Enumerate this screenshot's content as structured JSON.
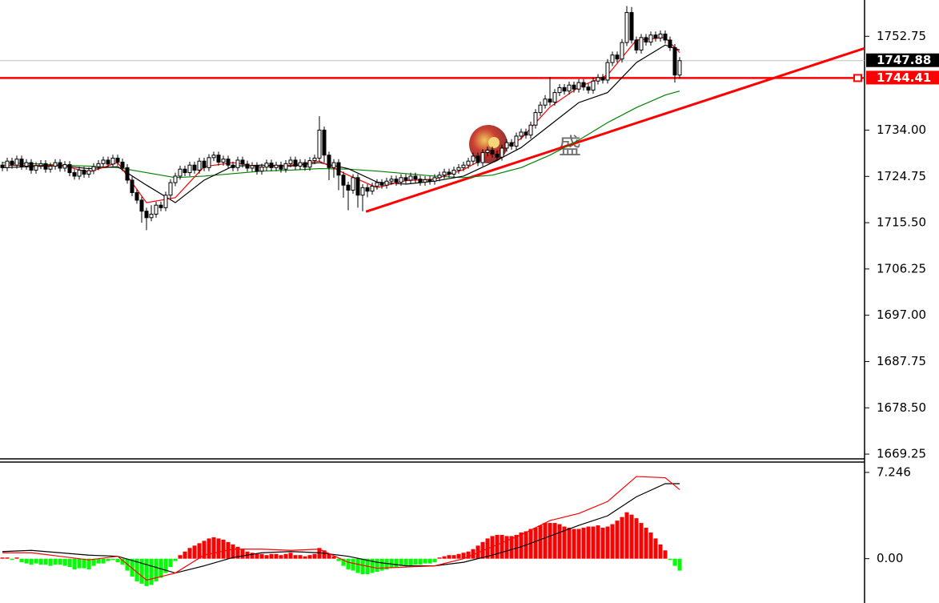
{
  "chart_data": [
    {
      "type": "candlestick",
      "xlim": [
        -0.5,
        179.5
      ],
      "ylim": [
        1668.3,
        1760.0
      ],
      "yticks": [
        1752.75,
        {
          "value": 1734,
          "label": "1734.00"
        },
        1724.75,
        {
          "value": 1715.5,
          "label": "1715.50"
        },
        1706.25,
        {
          "value": 1697,
          "label": "1697.00"
        },
        1687.75,
        {
          "value": 1678.5,
          "label": "1678.50"
        },
        1669.25
      ],
      "grid": false,
      "up_color": "#ffffff",
      "down_color": "#000000",
      "wick_color": "#000000",
      "open": [
        1727.0,
        1726.5,
        1727.8,
        1727.0,
        1728.2,
        1726.8,
        1727.5,
        1726.0,
        1726.9,
        1727.3,
        1726.2,
        1726.8,
        1727.5,
        1726.4,
        1727.1,
        1725.5,
        1724.8,
        1726.0,
        1725.2,
        1725.9,
        1726.7,
        1727.3,
        1728.0,
        1727.2,
        1728.4,
        1727.6,
        1726.5,
        1724.0,
        1721.5,
        1720.0,
        1717.8,
        1716.5,
        1717.2,
        1719.0,
        1718.5,
        1721.0,
        1723.5,
        1724.8,
        1726.2,
        1725.5,
        1727.0,
        1726.0,
        1727.8,
        1726.5,
        1728.5,
        1729.0,
        1727.6,
        1728.2,
        1727.0,
        1726.5,
        1728.0,
        1727.2,
        1726.4,
        1726.9,
        1725.8,
        1726.6,
        1727.4,
        1726.5,
        1727.0,
        1726.2,
        1727.3,
        1728.0,
        1726.8,
        1727.5,
        1726.6,
        1727.9,
        1728.4,
        1734.0,
        1729.0,
        1726.5,
        1727.5,
        1725.0,
        1723.0,
        1722.0,
        1724.5,
        1721.0,
        1722.5,
        1721.8,
        1722.8,
        1723.5,
        1723.0,
        1723.8,
        1724.2,
        1723.6,
        1724.5,
        1724.0,
        1724.8,
        1724.2,
        1723.6,
        1724.1,
        1723.8,
        1724.5,
        1725.0,
        1725.6,
        1725.2,
        1726.0,
        1726.5,
        1727.0,
        1727.8,
        1728.8,
        1727.5,
        1729.5,
        1730.0,
        1729.2,
        1728.6,
        1730.4,
        1731.5,
        1730.8,
        1732.8,
        1733.6,
        1733.0,
        1735.0,
        1737.5,
        1739.0,
        1740.2,
        1739.6,
        1741.5,
        1742.5,
        1741.8,
        1743.0,
        1742.2,
        1743.5,
        1742.6,
        1742.0,
        1743.8,
        1744.5,
        1744.0,
        1747.5,
        1749.0,
        1748.2,
        1751.5,
        1757.5,
        1752.0,
        1750.0,
        1752.5,
        1751.6,
        1753.0,
        1752.4,
        1753.2,
        1752.0,
        1750.5,
        1745.0
      ],
      "high": [
        1727.7,
        1728.5,
        1728.5,
        1728.9,
        1728.9,
        1728.2,
        1728.2,
        1727.6,
        1728.0,
        1728.0,
        1727.5,
        1728.2,
        1728.2,
        1727.8,
        1727.8,
        1726.2,
        1726.7,
        1726.7,
        1726.6,
        1727.4,
        1728.0,
        1728.7,
        1728.7,
        1729.1,
        1729.1,
        1728.3,
        1727.2,
        1724.7,
        1722.2,
        1720.7,
        1718.5,
        1719.0,
        1719.7,
        1719.7,
        1721.7,
        1724.2,
        1725.5,
        1726.9,
        1726.9,
        1727.7,
        1727.7,
        1728.5,
        1728.5,
        1729.2,
        1729.7,
        1729.7,
        1728.9,
        1728.9,
        1727.7,
        1728.7,
        1728.7,
        1727.9,
        1727.6,
        1727.6,
        1727.3,
        1728.1,
        1728.1,
        1727.7,
        1727.7,
        1728.0,
        1728.7,
        1728.7,
        1728.2,
        1728.2,
        1728.6,
        1729.1,
        1736.8,
        1734.7,
        1729.7,
        1728.2,
        1728.2,
        1725.7,
        1723.7,
        1725.2,
        1725.2,
        1723.2,
        1723.2,
        1723.5,
        1724.2,
        1724.2,
        1724.5,
        1724.9,
        1724.9,
        1725.2,
        1725.2,
        1725.5,
        1725.5,
        1724.9,
        1724.8,
        1724.8,
        1725.2,
        1725.7,
        1726.3,
        1726.3,
        1726.7,
        1727.2,
        1727.7,
        1728.5,
        1729.5,
        1729.5,
        1730.2,
        1730.7,
        1730.7,
        1729.9,
        1731.1,
        1732.2,
        1732.2,
        1733.5,
        1734.3,
        1734.3,
        1735.7,
        1738.2,
        1739.7,
        1741.0,
        1744.6,
        1742.2,
        1743.2,
        1743.2,
        1743.7,
        1743.7,
        1744.2,
        1744.2,
        1743.3,
        1744.5,
        1745.2,
        1745.2,
        1748.2,
        1749.7,
        1749.7,
        1752.2,
        1758.8,
        1758.6,
        1752.7,
        1753.2,
        1753.2,
        1753.7,
        1753.7,
        1753.9,
        1753.9,
        1752.7,
        1751.2,
        1748.6
      ],
      "low": [
        1725.8,
        1725.8,
        1726.3,
        1726.3,
        1726.1,
        1726.1,
        1725.3,
        1725.3,
        1726.2,
        1725.5,
        1725.5,
        1726.1,
        1725.7,
        1725.7,
        1724.8,
        1724.1,
        1724.1,
        1724.5,
        1724.5,
        1725.2,
        1726.0,
        1726.6,
        1726.5,
        1726.5,
        1726.9,
        1725.8,
        1723.3,
        1720.8,
        1719.3,
        1715.5,
        1714.0,
        1715.8,
        1716.5,
        1717.8,
        1717.8,
        1720.3,
        1722.8,
        1724.1,
        1724.8,
        1724.8,
        1725.3,
        1725.3,
        1725.8,
        1725.8,
        1727.8,
        1726.9,
        1726.9,
        1726.3,
        1725.8,
        1725.8,
        1726.5,
        1725.7,
        1725.7,
        1725.1,
        1725.1,
        1725.9,
        1725.8,
        1725.8,
        1725.5,
        1725.5,
        1726.6,
        1726.1,
        1726.1,
        1725.9,
        1725.9,
        1727.2,
        1727.7,
        1727.5,
        1724.0,
        1724.5,
        1722.0,
        1720.5,
        1718.0,
        1721.3,
        1718.5,
        1717.8,
        1720.6,
        1721.1,
        1722.1,
        1722.3,
        1722.3,
        1723.1,
        1722.9,
        1722.9,
        1723.3,
        1723.3,
        1723.5,
        1722.9,
        1722.9,
        1723.1,
        1723.1,
        1723.8,
        1724.3,
        1724.5,
        1724.5,
        1725.3,
        1725.8,
        1726.3,
        1727.1,
        1726.8,
        1726.8,
        1728.8,
        1728.5,
        1727.9,
        1727.9,
        1729.7,
        1730.1,
        1730.1,
        1732.1,
        1732.3,
        1732.3,
        1734.3,
        1736.8,
        1738.3,
        1738.9,
        1738.9,
        1740.8,
        1741.1,
        1741.1,
        1741.5,
        1741.5,
        1741.9,
        1741.3,
        1741.3,
        1743.1,
        1743.3,
        1743.3,
        1746.8,
        1747.5,
        1747.5,
        1750.8,
        1751.3,
        1749.3,
        1749.3,
        1750.9,
        1750.9,
        1751.7,
        1751.7,
        1751.3,
        1749.8,
        1743.5,
        1744.3
      ],
      "close": [
        1726.5,
        1727.8,
        1727.0,
        1728.2,
        1726.8,
        1727.5,
        1726.0,
        1726.9,
        1727.3,
        1726.2,
        1726.8,
        1727.5,
        1726.4,
        1727.1,
        1725.5,
        1724.8,
        1726.0,
        1725.2,
        1725.9,
        1726.7,
        1727.3,
        1728.0,
        1727.2,
        1728.4,
        1727.6,
        1726.5,
        1724.0,
        1721.5,
        1720.0,
        1717.8,
        1716.5,
        1717.2,
        1719.0,
        1718.5,
        1721.0,
        1723.5,
        1724.8,
        1726.2,
        1725.5,
        1727.0,
        1726.0,
        1727.8,
        1726.5,
        1728.5,
        1729.0,
        1727.6,
        1728.2,
        1727.0,
        1726.5,
        1728.0,
        1727.2,
        1726.4,
        1726.9,
        1725.8,
        1726.6,
        1727.4,
        1726.5,
        1727.0,
        1726.2,
        1727.3,
        1728.0,
        1726.8,
        1727.5,
        1726.6,
        1727.9,
        1728.4,
        1734.0,
        1729.0,
        1726.5,
        1727.5,
        1725.0,
        1723.0,
        1722.0,
        1724.5,
        1721.0,
        1722.5,
        1721.8,
        1722.8,
        1723.5,
        1723.0,
        1723.8,
        1724.2,
        1723.6,
        1724.5,
        1724.0,
        1724.8,
        1724.2,
        1723.6,
        1724.1,
        1723.8,
        1724.5,
        1725.0,
        1725.6,
        1725.2,
        1726.0,
        1726.5,
        1727.0,
        1727.8,
        1728.8,
        1727.5,
        1729.5,
        1730.0,
        1729.2,
        1728.6,
        1730.4,
        1731.5,
        1730.8,
        1732.8,
        1733.6,
        1733.0,
        1735.0,
        1737.5,
        1739.0,
        1740.2,
        1739.6,
        1741.5,
        1742.5,
        1741.8,
        1743.0,
        1742.2,
        1743.5,
        1742.6,
        1742.0,
        1743.8,
        1744.5,
        1744.0,
        1747.5,
        1749.0,
        1748.2,
        1751.5,
        1757.5,
        1752.0,
        1750.0,
        1752.5,
        1751.6,
        1753.0,
        1752.4,
        1753.2,
        1752.0,
        1750.5,
        1745.0,
        1747.88
      ],
      "series": [
        {
          "color": "#008000",
          "x": [
            0,
            6,
            12,
            18,
            24,
            30,
            36,
            42,
            48,
            54,
            60,
            66,
            72,
            78,
            84,
            90,
            96,
            102,
            108,
            114,
            120,
            126,
            132,
            138,
            141
          ],
          "values": [
            1727.5,
            1727.3,
            1727.0,
            1726.8,
            1726.5,
            1725.5,
            1724.5,
            1724.8,
            1725.3,
            1725.8,
            1726.0,
            1726.3,
            1726.2,
            1725.8,
            1725.3,
            1724.8,
            1724.5,
            1725.0,
            1726.5,
            1729.0,
            1732.0,
            1735.5,
            1738.5,
            1741.0,
            1741.8
          ]
        },
        {
          "color": "#000000",
          "x": [
            0,
            6,
            12,
            18,
            24,
            30,
            36,
            42,
            48,
            54,
            60,
            66,
            72,
            78,
            84,
            90,
            96,
            102,
            108,
            114,
            120,
            126,
            132,
            138,
            141
          ],
          "values": [
            1726.5,
            1726.7,
            1726.9,
            1726.3,
            1726.7,
            1723.0,
            1719.5,
            1724.0,
            1726.8,
            1727.0,
            1726.8,
            1727.5,
            1726.3,
            1723.6,
            1723.2,
            1723.8,
            1724.8,
            1727.5,
            1730.5,
            1735.0,
            1739.5,
            1741.5,
            1747.5,
            1751.0,
            1750.0
          ]
        },
        {
          "color": "#ff0000",
          "x": [
            0,
            6,
            12,
            18,
            24,
            30,
            36,
            42,
            48,
            54,
            60,
            66,
            72,
            78,
            84,
            90,
            96,
            102,
            108,
            114,
            120,
            126,
            132,
            138,
            141
          ],
          "values": [
            1727.0,
            1726.9,
            1727.0,
            1725.6,
            1727.5,
            1719.5,
            1720.5,
            1726.7,
            1727.5,
            1726.6,
            1727.0,
            1727.8,
            1725.0,
            1722.5,
            1723.9,
            1724.2,
            1726.1,
            1729.2,
            1732.3,
            1738.6,
            1742.6,
            1745.0,
            1752.0,
            1752.5,
            1749.5
          ]
        }
      ],
      "price_lines": [
        {
          "value": 1747.88,
          "color": "#c0c0c0",
          "label_color": "#000000"
        },
        {
          "value": 1744.41,
          "color": "#ff0000",
          "label_color": "#ff0000"
        }
      ],
      "trendline": {
        "x": [
          75.7,
          179.5
        ],
        "y": [
          1717.7,
          1750.35
        ],
        "color": "#ff0000"
      },
      "watermark": "盛"
    },
    {
      "type": "macd",
      "xlim": [
        -0.5,
        179.5
      ],
      "ylim": [
        -3.72,
        7.98
      ],
      "yticks": [
        7.246,
        {
          "value": 0,
          "label": "0.00"
        }
      ],
      "up_color": "#ff0000",
      "down_color": "#00ff00",
      "histogram": [
        0.1,
        0.1,
        -0.1,
        0.1,
        -0.3,
        -0.4,
        -0.5,
        -0.4,
        -0.5,
        -0.5,
        -0.6,
        -0.5,
        -0.5,
        -0.6,
        -0.7,
        -0.9,
        -0.8,
        -0.8,
        -0.9,
        -0.6,
        -0.4,
        -0.4,
        -0.2,
        -0.1,
        -0.3,
        -0.5,
        -1.0,
        -1.5,
        -1.9,
        -2.1,
        -2.3,
        -2.2,
        -1.9,
        -1.6,
        -1.2,
        -0.7,
        -0.2,
        0.3,
        0.6,
        0.9,
        1.1,
        1.3,
        1.5,
        1.7,
        1.8,
        1.7,
        1.6,
        1.4,
        1.2,
        1.0,
        0.8,
        0.6,
        0.5,
        0.4,
        0.4,
        0.3,
        0.4,
        0.4,
        0.3,
        0.4,
        0.5,
        0.3,
        0.3,
        0.2,
        0.3,
        0.4,
        0.9,
        0.7,
        0.4,
        0.2,
        -0.2,
        -0.6,
        -0.9,
        -1.0,
        -1.2,
        -1.3,
        -1.3,
        -1.2,
        -1.1,
        -1.0,
        -0.9,
        -0.8,
        -0.7,
        -0.6,
        -0.6,
        -0.6,
        -0.5,
        -0.5,
        -0.4,
        -0.4,
        -0.3,
        0.1,
        0.2,
        0.3,
        0.3,
        0.4,
        0.5,
        0.6,
        0.8,
        1.1,
        1.4,
        1.7,
        1.9,
        2.0,
        2.0,
        1.9,
        1.9,
        2.0,
        2.2,
        2.3,
        2.5,
        2.6,
        2.8,
        3.0,
        3.0,
        3.0,
        2.9,
        2.7,
        2.6,
        2.5,
        2.5,
        2.6,
        2.7,
        2.7,
        2.8,
        2.6,
        2.7,
        2.9,
        3.2,
        3.5,
        3.9,
        3.7,
        3.4,
        3.0,
        2.6,
        2.2,
        1.7,
        1.2,
        0.7,
        -0.1,
        -0.6,
        -1.0
      ],
      "series": [
        {
          "color": "#000000",
          "x": [
            0,
            6,
            12,
            18,
            24,
            30,
            36,
            42,
            48,
            54,
            60,
            66,
            72,
            78,
            84,
            90,
            96,
            102,
            108,
            114,
            120,
            126,
            132,
            138,
            141
          ],
          "values": [
            0.6,
            0.7,
            0.5,
            0.3,
            0.2,
            -0.5,
            -1.2,
            -0.6,
            0.1,
            0.5,
            0.6,
            0.5,
            0.2,
            -0.3,
            -0.6,
            -0.6,
            -0.3,
            0.3,
            1.0,
            1.9,
            2.8,
            3.6,
            5.2,
            6.3,
            6.3
          ]
        },
        {
          "color": "#ff0000",
          "x": [
            0,
            6,
            12,
            18,
            24,
            30,
            36,
            42,
            48,
            54,
            60,
            66,
            72,
            78,
            84,
            90,
            96,
            102,
            108,
            114,
            120,
            126,
            132,
            138,
            141
          ],
          "values": [
            0.5,
            0.5,
            0.2,
            -0.1,
            0.2,
            -1.8,
            -1.2,
            0.3,
            0.8,
            0.8,
            0.7,
            0.8,
            -0.3,
            -0.8,
            -0.7,
            -0.6,
            0.0,
            1.0,
            2.0,
            3.2,
            3.8,
            4.8,
            6.9,
            6.8,
            5.8
          ]
        }
      ]
    }
  ]
}
